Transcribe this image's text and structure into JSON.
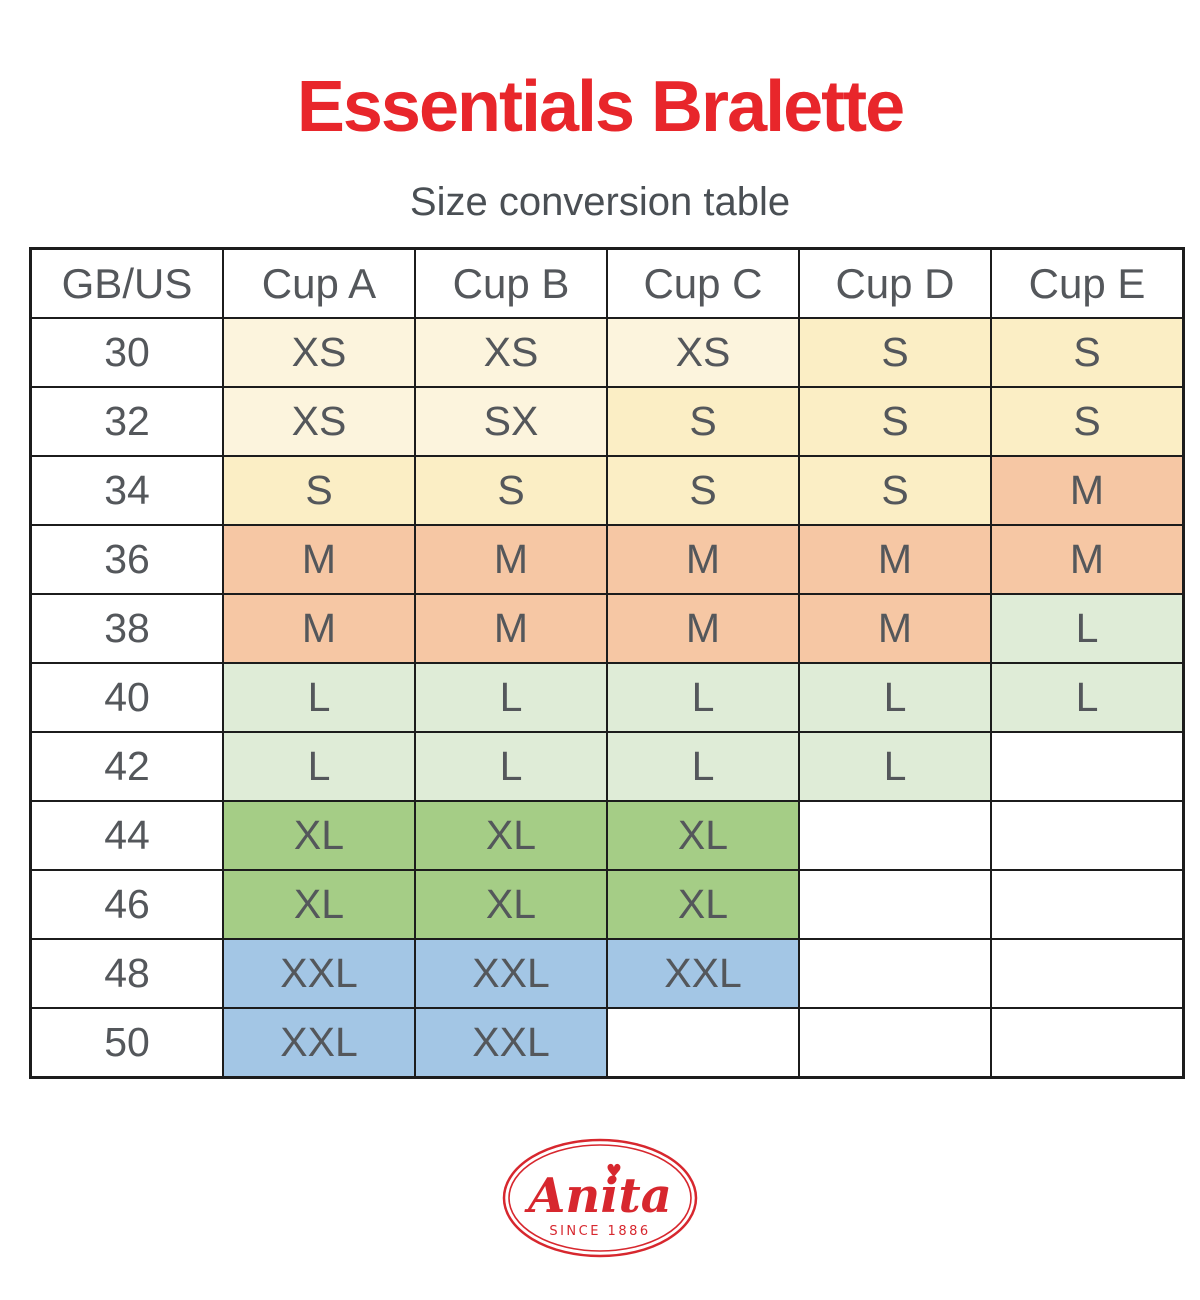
{
  "page": {
    "title": "Essentials Bralette",
    "subtitle": "Size conversion table"
  },
  "chart_data": {
    "type": "table",
    "title": "Size conversion table",
    "columns": [
      "GB/US",
      "Cup A",
      "Cup B",
      "Cup C",
      "Cup D",
      "Cup E"
    ],
    "rows": [
      [
        "30",
        "XS",
        "XS",
        "XS",
        "S",
        "S"
      ],
      [
        "32",
        "XS",
        "SX",
        "S",
        "S",
        "S"
      ],
      [
        "34",
        "S",
        "S",
        "S",
        "S",
        "M"
      ],
      [
        "36",
        "M",
        "M",
        "M",
        "M",
        "M"
      ],
      [
        "38",
        "M",
        "M",
        "M",
        "M",
        "L"
      ],
      [
        "40",
        "L",
        "L",
        "L",
        "L",
        "L"
      ],
      [
        "42",
        "L",
        "L",
        "L",
        "L",
        ""
      ],
      [
        "44",
        "XL",
        "XL",
        "XL",
        "",
        ""
      ],
      [
        "46",
        "XL",
        "XL",
        "XL",
        "",
        ""
      ],
      [
        "48",
        "XXL",
        "XXL",
        "XXL",
        "",
        ""
      ],
      [
        "50",
        "XXL",
        "XXL",
        "",
        "",
        ""
      ]
    ]
  },
  "colors": {
    "title_red": "#e8262b",
    "subtitle_gray": "#4a4f54",
    "cell_text": "#54575b",
    "table_border": "#1c1c1c",
    "logo_red": "#d7272e",
    "size_fill": {
      "XS": "#fcf4dd",
      "SX": "#fcf4dd",
      "S": "#fbeec5",
      "M": "#f6c7a4",
      "L": "#dfecd7",
      "XL": "#a5cd86",
      "XXL": "#a3c6e5",
      "": "#ffffff"
    }
  },
  "logo": {
    "brand": "Anita",
    "tagline": "SINCE 1886",
    "heart_glyph": "♥"
  }
}
